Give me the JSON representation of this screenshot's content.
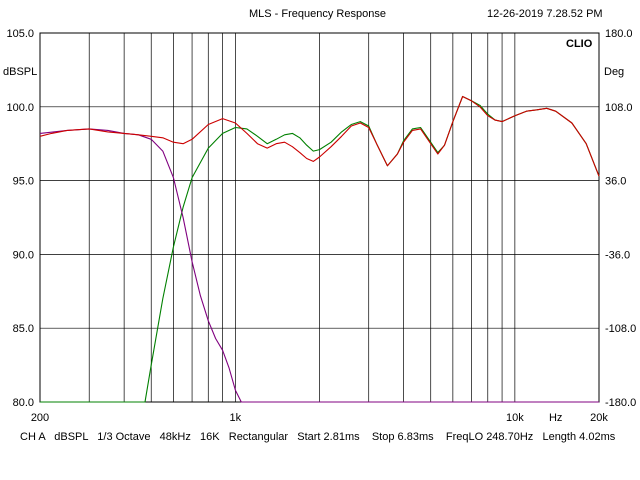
{
  "header": {
    "title": "MLS - Frequency Response",
    "timestamp": "12-26-2019 7.28.52 PM",
    "brand": "CLIO"
  },
  "axes": {
    "left_unit": "dBSPL",
    "right_unit": "Deg",
    "left_ticks": [
      "105.0",
      "100.0",
      "95.0",
      "90.0",
      "85.0",
      "80.0"
    ],
    "right_ticks": [
      "180.0",
      "108.0",
      "36.0",
      "-36.0",
      "-108.0",
      "-180.0"
    ],
    "x_ticks": [
      {
        "value": 200,
        "label": "200"
      },
      {
        "value": 1000,
        "label": "1k"
      },
      {
        "value": 10000,
        "label": "10k"
      },
      {
        "value": 20000,
        "label": "20k"
      }
    ],
    "x_unit_label": "Hz"
  },
  "footer": {
    "channel": "CH A",
    "unit": "dBSPL",
    "smoothing": "1/3 Octave",
    "sample_rate": "48kHz",
    "fft_size": "16K",
    "window": "Rectangular",
    "start": "Start 2.81ms",
    "stop": "Stop 6.83ms",
    "freq_lo": "FreqLO 248.70Hz",
    "length": "Length 4.02ms"
  },
  "colors": {
    "background": "#ffffff",
    "grid": "#000000",
    "total": "#cc0000",
    "woofer": "#800080",
    "tweeter": "#008000"
  },
  "chart_data": {
    "type": "line",
    "x_scale": "log",
    "xlim": [
      200,
      20000
    ],
    "ylim": [
      80,
      105
    ],
    "y2lim": [
      -180,
      180
    ],
    "grid": true,
    "series": [
      {
        "color": "#cc0000",
        "x": [
          200,
          220,
          250,
          300,
          350,
          400,
          450,
          500,
          550,
          600,
          650,
          700,
          800,
          900,
          1000,
          1100,
          1200,
          1300,
          1400,
          1500,
          1600,
          1700,
          1800,
          1900,
          2000,
          2200,
          2400,
          2600,
          2800,
          3000,
          3200,
          3500,
          3800,
          4000,
          4300,
          4600,
          5000,
          5300,
          5600,
          6000,
          6500,
          7000,
          7500,
          8000,
          8500,
          9000,
          10000,
          11000,
          12000,
          13000,
          14000,
          16000,
          18000,
          20000
        ],
        "y": [
          98.0,
          98.2,
          98.4,
          98.5,
          98.3,
          98.2,
          98.1,
          98.0,
          97.9,
          97.6,
          97.5,
          97.8,
          98.8,
          99.2,
          98.9,
          98.2,
          97.5,
          97.2,
          97.5,
          97.6,
          97.3,
          96.9,
          96.5,
          96.3,
          96.6,
          97.3,
          98.0,
          98.7,
          98.9,
          98.6,
          97.5,
          96.0,
          96.8,
          97.6,
          98.4,
          98.5,
          97.5,
          96.8,
          97.4,
          99.0,
          100.7,
          100.4,
          100.0,
          99.4,
          99.1,
          99.0,
          99.4,
          99.7,
          99.8,
          99.9,
          99.7,
          98.9,
          97.5,
          95.3
        ]
      },
      {
        "color": "#800080",
        "x": [
          200,
          250,
          300,
          350,
          400,
          450,
          500,
          550,
          600,
          650,
          700,
          750,
          800,
          850,
          900,
          950,
          1000,
          1050,
          1100,
          1200,
          2000,
          5000,
          10000,
          20000
        ],
        "y": [
          98.2,
          98.4,
          98.5,
          98.4,
          98.2,
          98.1,
          97.8,
          97.0,
          95.2,
          92.5,
          89.5,
          87.2,
          85.5,
          84.3,
          83.5,
          82.3,
          80.8,
          80.0,
          80.0,
          80.0,
          80.0,
          80.0,
          80.0,
          80.0
        ]
      },
      {
        "color": "#008000",
        "x": [
          200,
          300,
          450,
          475,
          500,
          550,
          600,
          650,
          700,
          800,
          900,
          1000,
          1100,
          1200,
          1300,
          1400,
          1500,
          1600,
          1700,
          1800,
          1900,
          2000,
          2200,
          2400,
          2600,
          2800,
          3000,
          3200,
          3500,
          3800,
          4000,
          4300,
          4600,
          5000,
          5300,
          5600,
          6000,
          6500,
          7000,
          7500,
          8000,
          8500,
          9000,
          10000,
          11000,
          12000,
          13000,
          14000,
          16000,
          18000,
          20000
        ],
        "y": [
          80.0,
          80.0,
          80.0,
          80.0,
          82.5,
          87.0,
          90.5,
          93.2,
          95.2,
          97.2,
          98.2,
          98.6,
          98.5,
          98.0,
          97.5,
          97.8,
          98.1,
          98.2,
          97.9,
          97.4,
          97.0,
          97.1,
          97.6,
          98.3,
          98.8,
          99.0,
          98.7,
          97.5,
          96.0,
          96.8,
          97.7,
          98.5,
          98.6,
          97.6,
          96.9,
          97.4,
          99.0,
          100.7,
          100.4,
          100.1,
          99.5,
          99.1,
          99.0,
          99.4,
          99.7,
          99.8,
          99.9,
          99.7,
          98.9,
          97.5,
          95.3
        ]
      }
    ]
  }
}
